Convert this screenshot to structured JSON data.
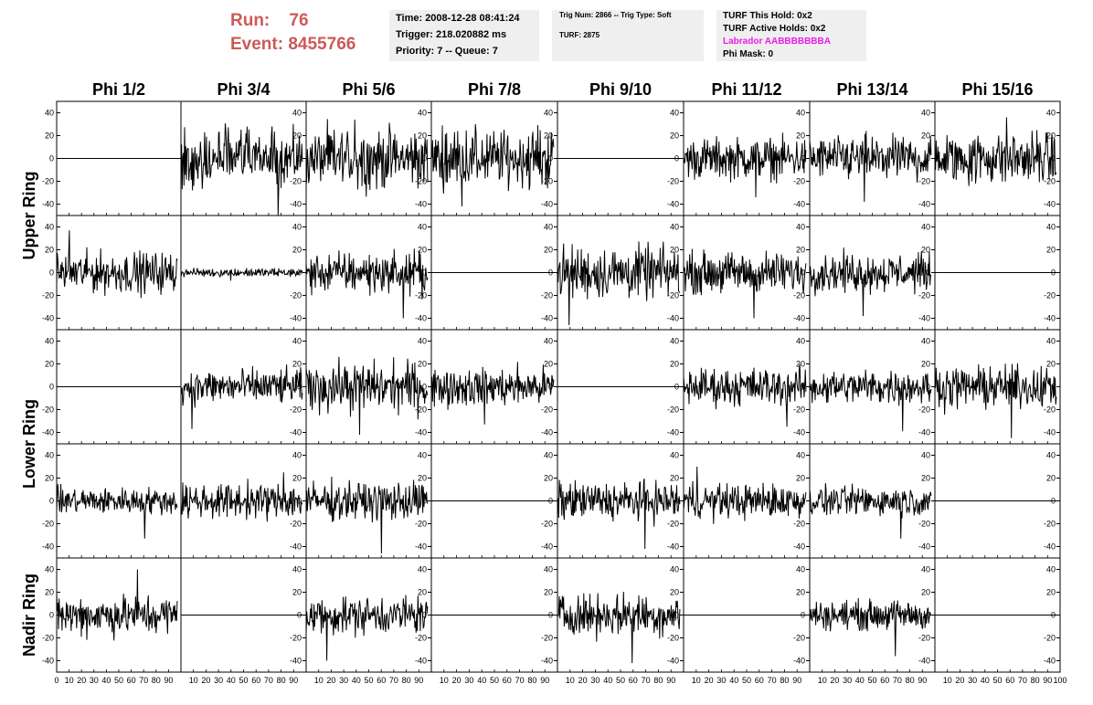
{
  "header": {
    "run_label": "Run:",
    "run_value": "76",
    "event_label": "Event:",
    "event_value": "8455766",
    "time": "Time: 2008-12-28 08:41:24",
    "trigger": "Trigger: 218.020882 ms",
    "priority": "Priority: 7 -- Queue: 7",
    "trig_num": "Trig Num: 2866 -- Trig Type: Soft",
    "turf": "TURF: 2875",
    "turf_hold": "TURF This Hold: 0x2",
    "turf_active": "TURF Active Holds: 0x2",
    "labrador": "Labrador AABBBBBBBA",
    "phi_mask": "Phi Mask: 0"
  },
  "colors": {
    "run": "#cc5a56",
    "labrador": "#e81ee8",
    "panel_bg": "#efefef",
    "trace": "#000000"
  },
  "chart_data": {
    "type": "line",
    "columns": [
      "Phi 1/2",
      "Phi 3/4",
      "Phi 5/6",
      "Phi 7/8",
      "Phi 9/10",
      "Phi 11/12",
      "Phi 13/14",
      "Phi 15/16"
    ],
    "rows": [
      "Upper Ring",
      "Upper Ring",
      "Lower Ring",
      "Lower Ring",
      "Nadir Ring"
    ],
    "row_labels": [
      "Upper Ring",
      "Lower Ring",
      "Nadir Ring"
    ],
    "xlim": [
      0,
      100
    ],
    "ylim": [
      -50,
      50
    ],
    "x_ticks": [
      0,
      10,
      20,
      30,
      40,
      50,
      60,
      70,
      80,
      90,
      100
    ],
    "y_ticks": [
      -40,
      -20,
      0,
      20,
      40
    ],
    "panel_amplitude": [
      [
        0,
        18,
        20,
        20,
        0,
        14,
        15,
        18
      ],
      [
        14,
        3,
        14,
        0,
        18,
        14,
        13,
        0
      ],
      [
        0,
        12,
        17,
        13,
        0,
        13,
        12,
        14
      ],
      [
        9,
        12,
        13,
        0,
        13,
        12,
        10,
        0
      ],
      [
        14,
        0,
        13,
        0,
        14,
        0,
        10,
        0
      ]
    ],
    "peak_excursions": [
      [
        0,
        -50,
        34,
        -42,
        0,
        -34,
        -38,
        36
      ],
      [
        37,
        -7,
        -40,
        0,
        -46,
        -40,
        -38,
        0
      ],
      [
        0,
        -37,
        -42,
        -33,
        0,
        -35,
        -39,
        -45
      ],
      [
        -33,
        25,
        -46,
        0,
        -42,
        30,
        -33,
        0
      ],
      [
        40,
        0,
        -40,
        0,
        -42,
        0,
        -36,
        0
      ]
    ]
  }
}
